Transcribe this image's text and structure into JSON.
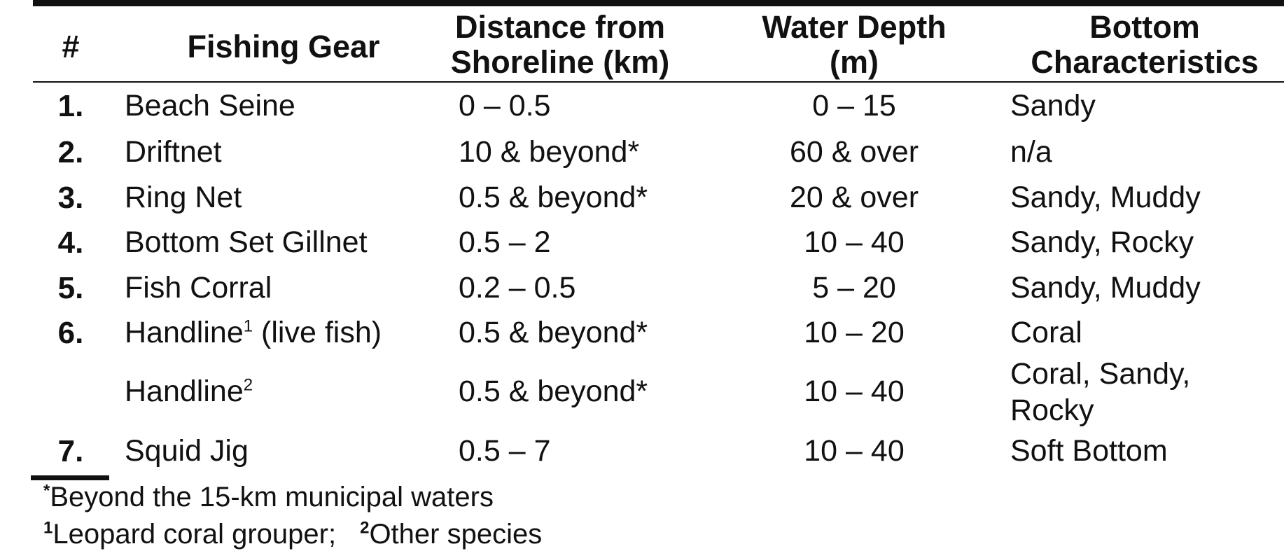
{
  "headers": {
    "num": "#",
    "gear": "Fishing Gear",
    "distance_l1": "Distance from",
    "distance_l2": "Shoreline (km)",
    "depth_l1": "Water Depth",
    "depth_l2": "(m)",
    "bottom_l1": "Bottom",
    "bottom_l2": "Characteristics"
  },
  "rows": [
    {
      "num": "1.",
      "gear": "Beach Seine",
      "distance": "0 – 0.5",
      "depth": "0 – 15",
      "bottom": "Sandy"
    },
    {
      "num": "2.",
      "gear": "Driftnet",
      "distance": "10 & beyond*",
      "depth": "60 & over",
      "bottom": "n/a"
    },
    {
      "num": "3.",
      "gear": "Ring Net",
      "distance": "0.5 & beyond*",
      "depth": "20 & over",
      "bottom": "Sandy, Muddy"
    },
    {
      "num": "4.",
      "gear": "Bottom Set Gillnet",
      "distance": "0.5 – 2",
      "depth": "10 – 40",
      "bottom": "Sandy, Rocky"
    },
    {
      "num": "5.",
      "gear": "Fish Corral",
      "distance": "0.2 – 0.5",
      "depth": "5 – 20",
      "bottom": "Sandy, Muddy"
    },
    {
      "num": "6.",
      "gear": "Handline",
      "gear_sup": "1",
      "gear_suffix": " (live fish)",
      "distance": "0.5 & beyond*",
      "depth": "10 – 20",
      "bottom": "Coral"
    },
    {
      "num": "",
      "gear": "Handline",
      "gear_sup": "2",
      "distance": "0.5 & beyond*",
      "depth": "10 – 40",
      "bottom_l1": "Coral, Sandy,",
      "bottom_l2": "Rocky"
    },
    {
      "num": "7.",
      "gear": "Squid Jig",
      "distance": "0.5 – 7",
      "depth": "10 – 40",
      "bottom": "Soft Bottom"
    }
  ],
  "footnotes": {
    "star_mark": "*",
    "star_text": "Beyond the 15-km municipal waters",
    "n1_mark": "1",
    "n1_text": "Leopard coral grouper;",
    "n2_mark": "2",
    "n2_text": "Other species"
  }
}
